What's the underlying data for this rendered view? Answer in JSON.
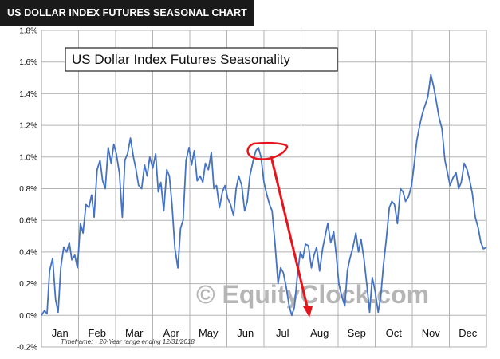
{
  "header": {
    "title": "US DOLLAR INDEX FUTURES SEASONAL CHART"
  },
  "watermark": "© EquityClock.com",
  "footnote": {
    "label": "Timeframe:",
    "text": "20-Year range  ending 12/31/2018"
  },
  "chart_data": {
    "type": "line",
    "title": "US Dollar Index Futures Seasonality",
    "xlabel": "",
    "ylabel": "",
    "ylim": [
      -0.2,
      1.8
    ],
    "y_ticks": [
      "1.8%",
      "1.6%",
      "1.4%",
      "1.2%",
      "1.0%",
      "0.8%",
      "0.6%",
      "0.4%",
      "0.2%",
      "0.0%",
      "-0.2%"
    ],
    "y_tick_values": [
      1.8,
      1.6,
      1.4,
      1.2,
      1.0,
      0.8,
      0.6,
      0.4,
      0.2,
      0.0,
      -0.2
    ],
    "categories": [
      "Jan",
      "Feb",
      "Mar",
      "Apr",
      "May",
      "Jun",
      "Jul",
      "Aug",
      "Sep",
      "Oct",
      "Nov",
      "Dec"
    ],
    "grid": true,
    "line_color": "#4472c4",
    "annotation_color": "#e8141c",
    "series": [
      {
        "x": [
          0,
          0.08,
          0.15,
          0.22,
          0.3,
          0.38,
          0.45,
          0.52,
          0.6,
          0.68,
          0.75,
          0.82,
          0.9,
          0.97,
          1.05,
          1.12,
          1.2,
          1.28,
          1.35,
          1.42,
          1.5,
          1.58,
          1.65,
          1.72,
          1.8,
          1.88,
          1.95,
          2.02,
          2.1,
          2.18,
          2.25,
          2.32,
          2.4,
          2.48,
          2.55,
          2.62,
          2.7,
          2.78,
          2.85,
          2.92,
          3.0,
          3.08,
          3.15,
          3.22,
          3.3,
          3.38,
          3.45,
          3.52,
          3.6,
          3.68,
          3.75,
          3.82,
          3.9,
          3.98,
          4.05,
          4.12,
          4.2,
          4.28,
          4.35,
          4.42,
          4.5,
          4.58,
          4.65,
          4.72,
          4.8,
          4.88,
          4.95,
          5.02,
          5.1,
          5.18,
          5.25,
          5.32,
          5.4,
          5.48,
          5.55,
          5.62,
          5.7,
          5.78,
          5.85,
          5.92,
          6.0,
          6.08,
          6.15,
          6.22,
          6.3,
          6.38,
          6.45,
          6.52,
          6.6,
          6.68,
          6.75,
          6.82,
          6.9,
          6.98,
          7.05,
          7.12,
          7.2,
          7.28,
          7.35,
          7.42,
          7.5,
          7.58,
          7.65,
          7.72,
          7.8,
          7.88,
          7.95,
          8.02,
          8.1,
          8.18,
          8.25,
          8.32,
          8.4,
          8.48,
          8.55,
          8.62,
          8.7,
          8.78,
          8.85,
          8.92,
          9.0,
          9.08,
          9.15,
          9.22,
          9.3,
          9.38,
          9.45,
          9.52,
          9.6,
          9.68,
          9.75,
          9.82,
          9.9,
          9.98,
          10.05,
          10.12,
          10.2,
          10.28,
          10.35,
          10.42,
          10.5,
          10.58,
          10.65,
          10.72,
          10.8,
          10.88,
          10.95,
          11.02,
          11.1,
          11.18,
          11.25,
          11.32,
          11.4,
          11.48,
          11.55,
          11.62,
          11.7,
          11.78,
          11.85,
          11.92,
          12.0
        ],
        "values": [
          0.0,
          0.03,
          0.01,
          0.28,
          0.36,
          0.1,
          0.02,
          0.3,
          0.43,
          0.4,
          0.46,
          0.35,
          0.38,
          0.3,
          0.58,
          0.52,
          0.7,
          0.68,
          0.76,
          0.62,
          0.92,
          0.98,
          0.85,
          0.8,
          1.06,
          0.96,
          1.08,
          1.02,
          0.9,
          0.62,
          0.98,
          1.02,
          1.12,
          1.0,
          0.92,
          0.82,
          0.8,
          0.95,
          0.88,
          1.0,
          0.93,
          1.02,
          0.78,
          0.84,
          0.66,
          0.92,
          0.88,
          0.7,
          0.42,
          0.3,
          0.55,
          0.6,
          0.98,
          1.06,
          0.95,
          1.04,
          0.85,
          0.88,
          0.84,
          0.96,
          0.92,
          1.03,
          0.8,
          0.82,
          0.68,
          0.78,
          0.82,
          0.74,
          0.7,
          0.63,
          0.8,
          0.88,
          0.82,
          0.66,
          0.72,
          0.88,
          0.97,
          1.04,
          1.06,
          1.0,
          0.84,
          0.76,
          0.7,
          0.66,
          0.45,
          0.2,
          0.3,
          0.27,
          0.18,
          0.06,
          0.0,
          0.05,
          0.25,
          0.4,
          0.36,
          0.45,
          0.44,
          0.3,
          0.38,
          0.43,
          0.28,
          0.42,
          0.5,
          0.58,
          0.46,
          0.53,
          0.38,
          0.2,
          0.12,
          0.06,
          0.28,
          0.36,
          0.43,
          0.52,
          0.4,
          0.48,
          0.35,
          0.18,
          0.02,
          0.24,
          0.15,
          0.02,
          0.12,
          0.31,
          0.48,
          0.68,
          0.72,
          0.7,
          0.58,
          0.8,
          0.78,
          0.72,
          0.75,
          0.82,
          0.95,
          1.1,
          1.2,
          1.28,
          1.33,
          1.38,
          1.52,
          1.44,
          1.35,
          1.25,
          1.18,
          0.98,
          0.9,
          0.82,
          0.87,
          0.9,
          0.8,
          0.84,
          0.96,
          0.92,
          0.85,
          0.77,
          0.62,
          0.55,
          0.46,
          0.42,
          0.43
        ]
      }
    ]
  }
}
